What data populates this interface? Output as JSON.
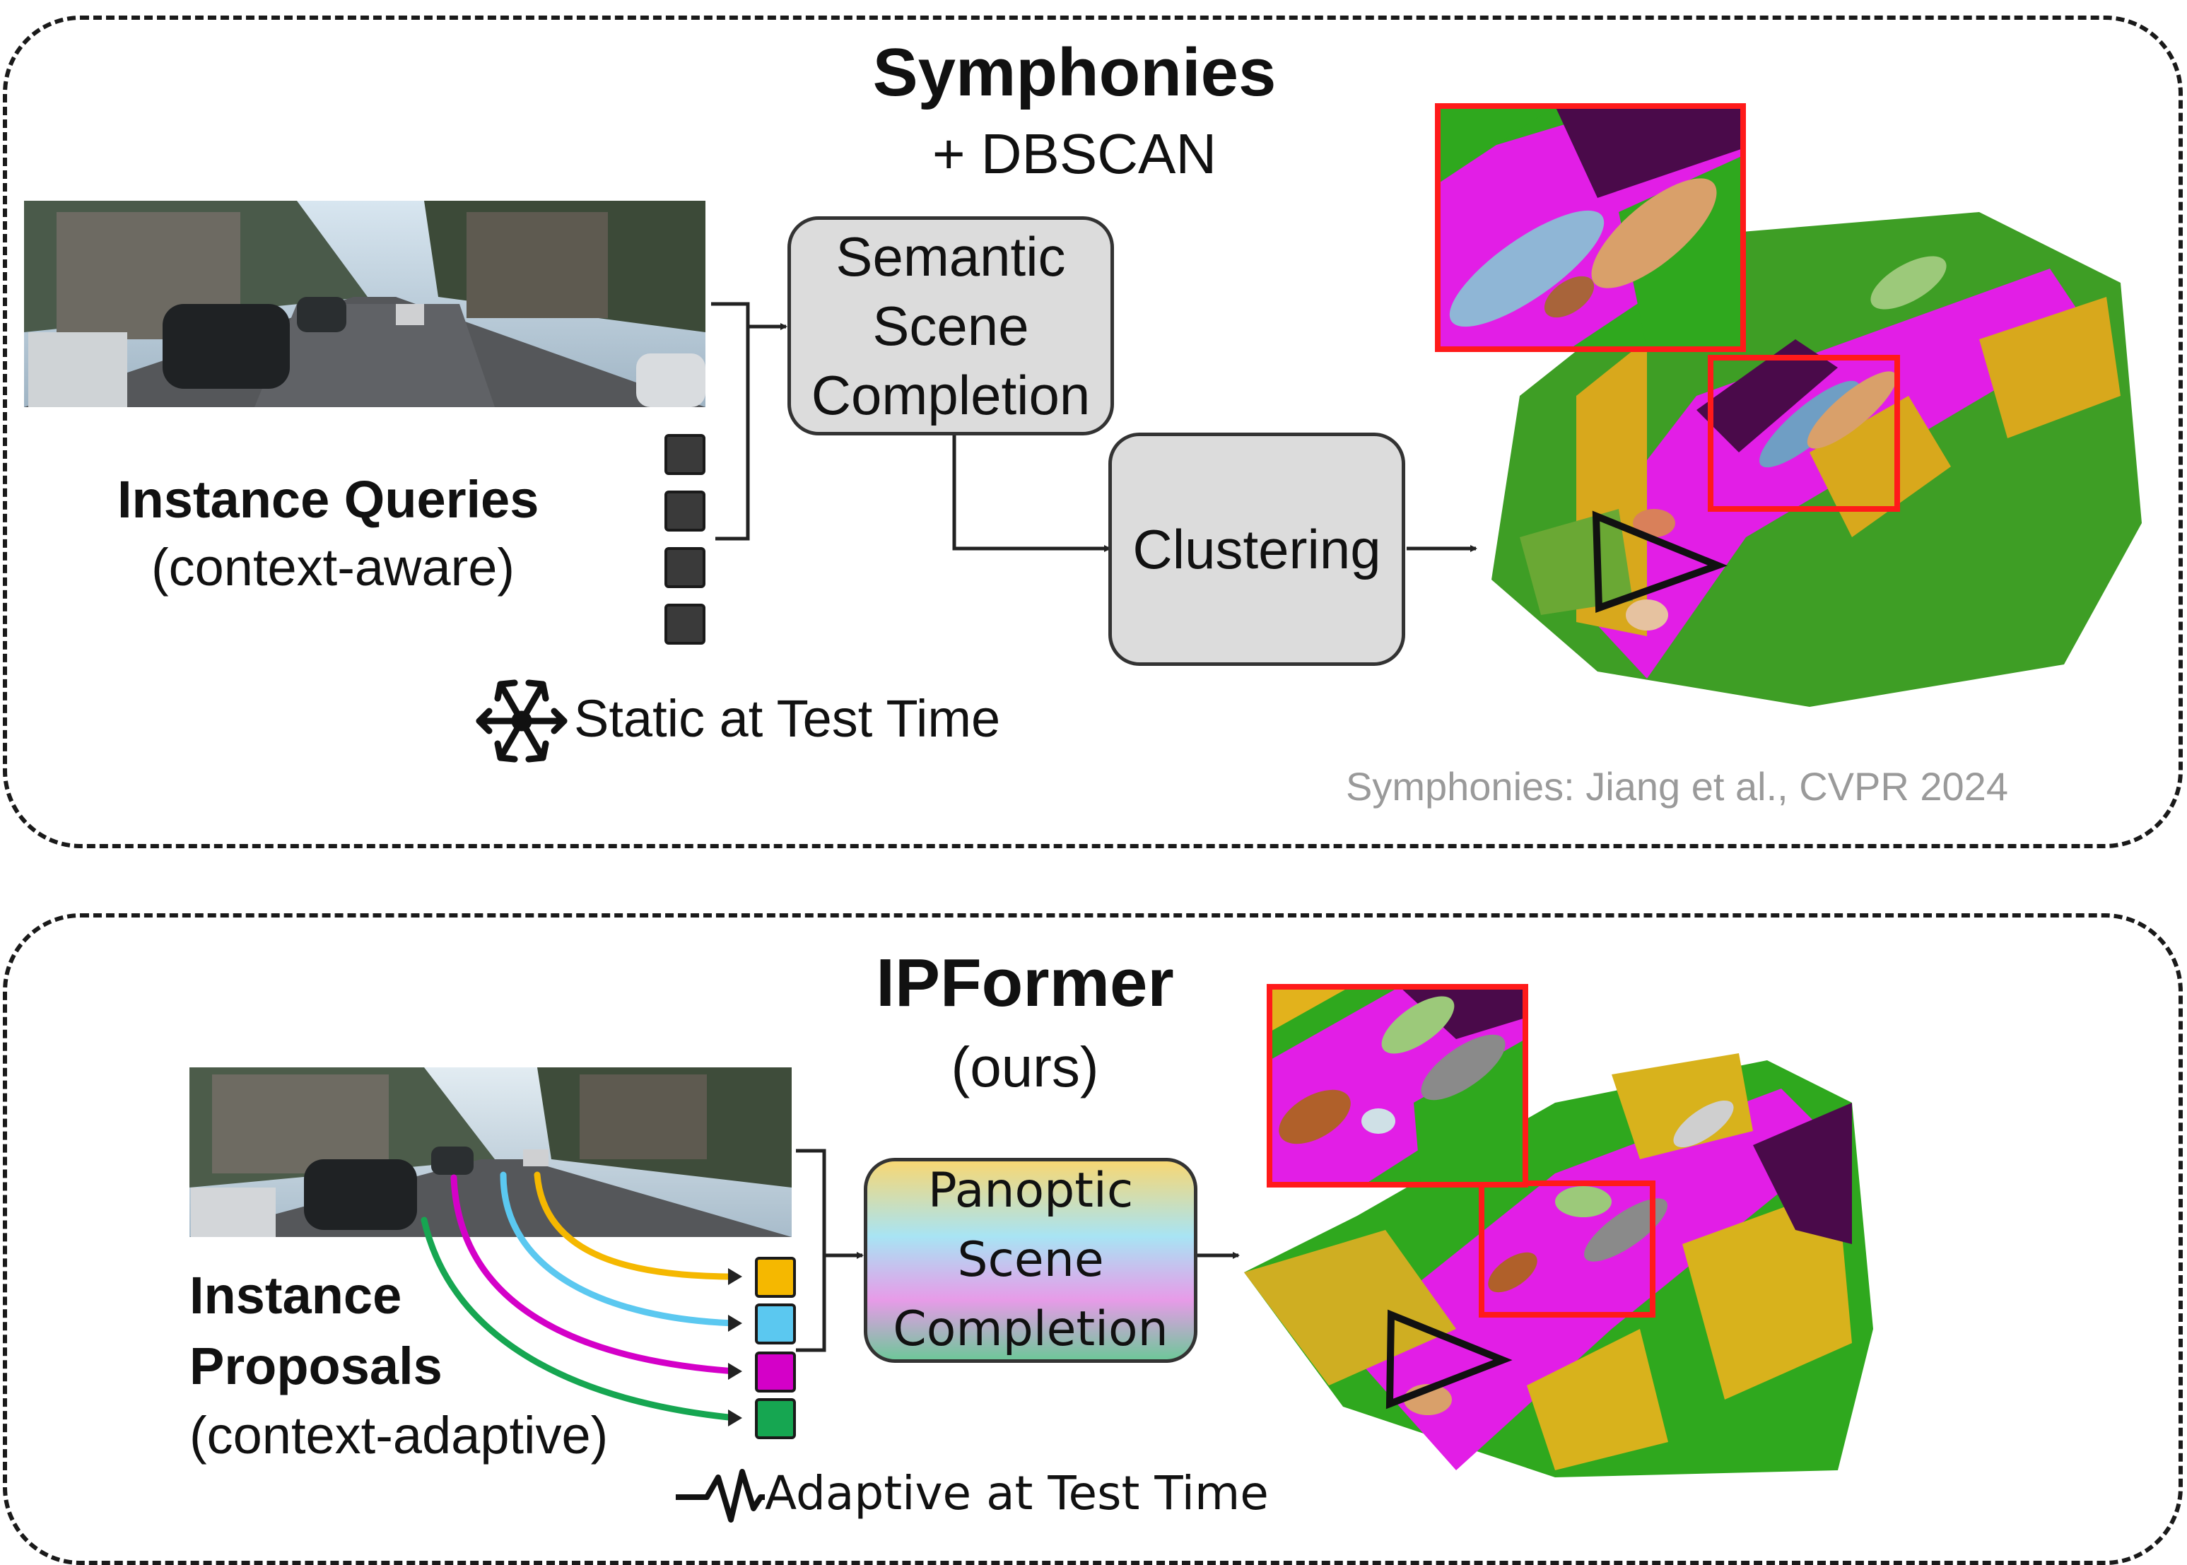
{
  "top": {
    "title": "Symphonies",
    "subtitle": "+ DBSCAN",
    "box1": {
      "lines": [
        "Semantic",
        "Scene",
        "Completion"
      ]
    },
    "box2": {
      "label": "Clustering"
    },
    "queries_label": "Instance Queries",
    "queries_sub": "(context-aware)",
    "static_label": "Static at Test Time",
    "citation": "Symphonies: Jiang et al., CVPR 2024"
  },
  "bottom": {
    "title": "IPFormer",
    "subtitle": "(ours)",
    "box": {
      "lines": [
        "Panoptic",
        "Scene",
        "Completion"
      ]
    },
    "proposals_label_1": "Instance",
    "proposals_label_2": "Proposals",
    "proposals_sub": "(context-adaptive)",
    "adaptive_label": "Adaptive at Test Time",
    "token_colors": [
      "#f5b800",
      "#5bc8f0",
      "#d400c8",
      "#16a651"
    ]
  },
  "colors": {
    "road": "#e21ee6",
    "vegetation": "#2fa81e",
    "terrain": "#e2b21c",
    "sidewalk": "#4a0a4a",
    "highlight": "#ff1a1a"
  }
}
